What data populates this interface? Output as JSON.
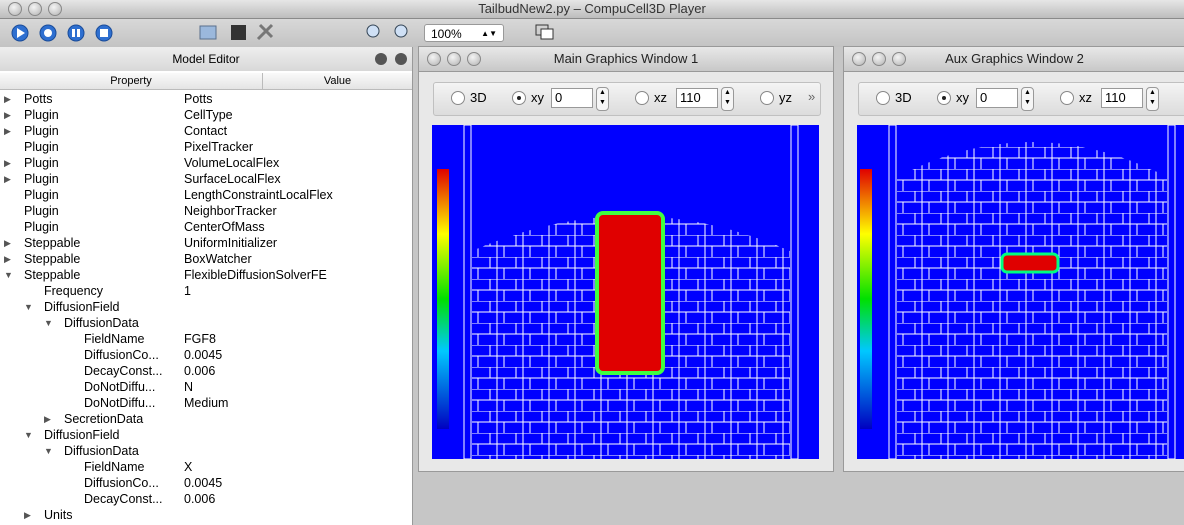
{
  "window": {
    "title": "TailbudNew2.py – CompuCell3D Player"
  },
  "toolbar": {
    "zoom": "100%"
  },
  "model_editor": {
    "title": "Model Editor",
    "columns": [
      "Property",
      "Value"
    ],
    "rows": [
      {
        "property": "Potts",
        "value": "Potts",
        "level": 0,
        "expander": "closed"
      },
      {
        "property": "Plugin",
        "value": "CellType",
        "level": 0,
        "expander": "closed"
      },
      {
        "property": "Plugin",
        "value": "Contact",
        "level": 0,
        "expander": "closed"
      },
      {
        "property": "Plugin",
        "value": "PixelTracker",
        "level": 0
      },
      {
        "property": "Plugin",
        "value": "VolumeLocalFlex",
        "level": 0,
        "expander": "closed"
      },
      {
        "property": "Plugin",
        "value": "SurfaceLocalFlex",
        "level": 0,
        "expander": "closed"
      },
      {
        "property": "Plugin",
        "value": "LengthConstraintLocalFlex",
        "level": 0
      },
      {
        "property": "Plugin",
        "value": "NeighborTracker",
        "level": 0
      },
      {
        "property": "Plugin",
        "value": "CenterOfMass",
        "level": 0
      },
      {
        "property": "Steppable",
        "value": "UniformInitializer",
        "level": 0,
        "expander": "closed"
      },
      {
        "property": "Steppable",
        "value": "BoxWatcher",
        "level": 0,
        "expander": "closed"
      },
      {
        "property": "Steppable",
        "value": "FlexibleDiffusionSolverFE",
        "level": 0,
        "expander": "open"
      },
      {
        "property": "Frequency",
        "value": "1",
        "level": 1
      },
      {
        "property": "DiffusionField",
        "level": 1,
        "expander": "open"
      },
      {
        "property": "DiffusionData",
        "level": 2,
        "expander": "open"
      },
      {
        "property": "FieldName",
        "value": "FGF8",
        "level": 3
      },
      {
        "property": "DiffusionCo...",
        "value": "0.0045",
        "level": 3
      },
      {
        "property": "DecayConst...",
        "value": "0.006",
        "level": 3
      },
      {
        "property": "DoNotDiffu...",
        "value": "N",
        "level": 3
      },
      {
        "property": "DoNotDiffu...",
        "value": "Medium",
        "level": 3
      },
      {
        "property": "SecretionData",
        "level": 2,
        "expander": "closed"
      },
      {
        "property": "DiffusionField",
        "level": 1,
        "expander": "open"
      },
      {
        "property": "DiffusionData",
        "level": 2,
        "expander": "open"
      },
      {
        "property": "FieldName",
        "value": "X",
        "level": 3
      },
      {
        "property": "DiffusionCo...",
        "value": "0.0045",
        "level": 3
      },
      {
        "property": "DecayConst...",
        "value": "0.006",
        "level": 3
      },
      {
        "property": "Units",
        "level": 1,
        "expander": "closed"
      }
    ]
  },
  "graphics_windows": [
    {
      "title": "Main Graphics Window 1",
      "selected": "xy",
      "controls": {
        "view_3d": "3D",
        "plane_xy": "xy",
        "xy_value": "0",
        "plane_xz": "xz",
        "xz_value": "110",
        "plane_yz": "yz",
        "more": "»"
      }
    },
    {
      "title": "Aux Graphics Window 2",
      "selected": "xy",
      "controls": {
        "view_3d": "3D",
        "plane_xy": "xy",
        "xy_value": "0",
        "plane_xz": "xz",
        "xz_value": "110"
      }
    }
  ]
}
